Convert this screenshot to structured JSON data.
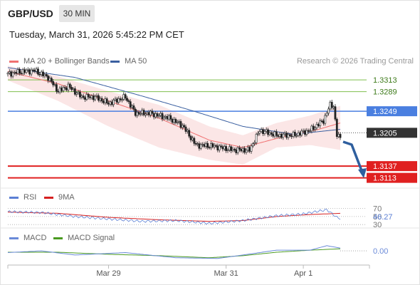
{
  "header": {
    "symbol": "GBP/USD",
    "timeframe": "30 MIN",
    "datetime": "Tuesday, March 31, 2026 5:45:22 PM CET"
  },
  "legend": {
    "ma20_label": "MA 20 + Bollinger Bands",
    "ma50_label": "MA 50",
    "credit": "Research © 2026 Trading Central"
  },
  "colors": {
    "ma20": "#f07070",
    "ma50": "#3a5fa0",
    "band_fill": "#fadcdc",
    "candle": "#222222",
    "resistance": "#7fbf4d",
    "pivot": "#4a7fe0",
    "support": "#e02020",
    "last_price": "#333333",
    "arrow": "#2f5f9e",
    "rsi": "#5b7fd4",
    "rsi_ma": "#d62020",
    "macd": "#6a8ad8",
    "macd_signal": "#4a9a20"
  },
  "chart_data": [
    {
      "type": "candlestick",
      "name": "price",
      "ylim": [
        1.3095,
        1.3335
      ],
      "levels": [
        {
          "value": 1.3313,
          "label": "1.3313",
          "kind": "resistance"
        },
        {
          "value": 1.3289,
          "label": "1.3289",
          "kind": "resistance"
        },
        {
          "value": 1.3249,
          "label": "1.3249",
          "kind": "pivot"
        },
        {
          "value": 1.3205,
          "label": "1.3205",
          "kind": "last"
        },
        {
          "value": 1.3137,
          "label": "1.3137",
          "kind": "support"
        },
        {
          "value": 1.3113,
          "label": "1.3113",
          "kind": "support"
        }
      ],
      "close_anchors": [
        [
          0,
          1.3325
        ],
        [
          8,
          1.333
        ],
        [
          16,
          1.3332
        ],
        [
          24,
          1.3318
        ],
        [
          30,
          1.329
        ],
        [
          36,
          1.33
        ],
        [
          44,
          1.3278
        ],
        [
          52,
          1.3278
        ],
        [
          60,
          1.3265
        ],
        [
          70,
          1.3278
        ],
        [
          76,
          1.3245
        ],
        [
          84,
          1.3245
        ],
        [
          96,
          1.3235
        ],
        [
          104,
          1.322
        ],
        [
          112,
          1.318
        ],
        [
          122,
          1.3178
        ],
        [
          134,
          1.317
        ],
        [
          144,
          1.317
        ],
        [
          150,
          1.321
        ],
        [
          160,
          1.32
        ],
        [
          170,
          1.32
        ],
        [
          180,
          1.321
        ],
        [
          188,
          1.323
        ],
        [
          192,
          1.3262
        ],
        [
          194,
          1.326
        ],
        [
          196,
          1.32
        ],
        [
          198,
          1.3195
        ]
      ],
      "bands": {
        "upper": [
          [
            0,
            1.3342
          ],
          [
            30,
            1.332
          ],
          [
            60,
            1.329
          ],
          [
            90,
            1.3262
          ],
          [
            120,
            1.3218
          ],
          [
            140,
            1.32
          ],
          [
            160,
            1.3225
          ],
          [
            180,
            1.324
          ],
          [
            198,
            1.326
          ]
        ],
        "lower": [
          [
            0,
            1.3312
          ],
          [
            30,
            1.327
          ],
          [
            60,
            1.3218
          ],
          [
            90,
            1.3175
          ],
          [
            120,
            1.315
          ],
          [
            140,
            1.314
          ],
          [
            160,
            1.3175
          ],
          [
            180,
            1.318
          ],
          [
            198,
            1.317
          ]
        ]
      },
      "ma20": [
        [
          0,
          1.333
        ],
        [
          30,
          1.3305
        ],
        [
          60,
          1.327
        ],
        [
          90,
          1.3235
        ],
        [
          120,
          1.319
        ],
        [
          140,
          1.3175
        ],
        [
          165,
          1.3198
        ],
        [
          185,
          1.3212
        ],
        [
          198,
          1.3225
        ]
      ],
      "ma50": [
        [
          0,
          1.3338
        ],
        [
          40,
          1.3318
        ],
        [
          80,
          1.328
        ],
        [
          110,
          1.325
        ],
        [
          140,
          1.3218
        ],
        [
          170,
          1.3202
        ],
        [
          198,
          1.3212
        ]
      ],
      "x_labels": [
        {
          "label": "Mar 29",
          "index": 60
        },
        {
          "label": "Mar 31",
          "index": 130
        },
        {
          "label": "Apr 1",
          "index": 176
        }
      ]
    },
    {
      "type": "line",
      "name": "RSI",
      "ylim": [
        25,
        80
      ],
      "series": [
        {
          "name": "RSI",
          "points": [
            [
              0,
              62
            ],
            [
              20,
              60
            ],
            [
              40,
              50
            ],
            [
              60,
              44
            ],
            [
              80,
              38
            ],
            [
              100,
              40
            ],
            [
              120,
              33
            ],
            [
              140,
              40
            ],
            [
              160,
              52
            ],
            [
              175,
              56
            ],
            [
              190,
              67
            ],
            [
              196,
              48
            ],
            [
              198,
              45
            ]
          ]
        },
        {
          "name": "9MA",
          "points": [
            [
              0,
              61
            ],
            [
              30,
              58
            ],
            [
              60,
              48
            ],
            [
              90,
              42
            ],
            [
              120,
              38
            ],
            [
              140,
              40
            ],
            [
              160,
              50
            ],
            [
              180,
              55
            ],
            [
              198,
              58
            ]
          ]
        }
      ],
      "levels": [
        {
          "value": 70,
          "label": "70"
        },
        {
          "value": 50,
          "label": "50"
        },
        {
          "value": 30,
          "label": "30"
        }
      ],
      "current": "46.27"
    },
    {
      "type": "line",
      "name": "MACD",
      "ylim": [
        -0.0035,
        0.0025
      ],
      "series": [
        {
          "name": "MACD",
          "points": [
            [
              0,
              -0.0005
            ],
            [
              20,
              0.0
            ],
            [
              40,
              -0.0012
            ],
            [
              70,
              -0.0005
            ],
            [
              100,
              -0.002
            ],
            [
              125,
              -0.0022
            ],
            [
              140,
              -0.0012
            ],
            [
              160,
              0.0002
            ],
            [
              180,
              0.0002
            ],
            [
              190,
              0.0015
            ],
            [
              198,
              0.0008
            ]
          ]
        },
        {
          "name": "MACD Signal",
          "points": [
            [
              0,
              -0.0004
            ],
            [
              30,
              -0.0004
            ],
            [
              60,
              -0.001
            ],
            [
              90,
              -0.0014
            ],
            [
              120,
              -0.002
            ],
            [
              140,
              -0.0014
            ],
            [
              160,
              -0.0004
            ],
            [
              180,
              0.0002
            ],
            [
              198,
              0.0006
            ]
          ]
        }
      ],
      "current": "0.00"
    }
  ]
}
